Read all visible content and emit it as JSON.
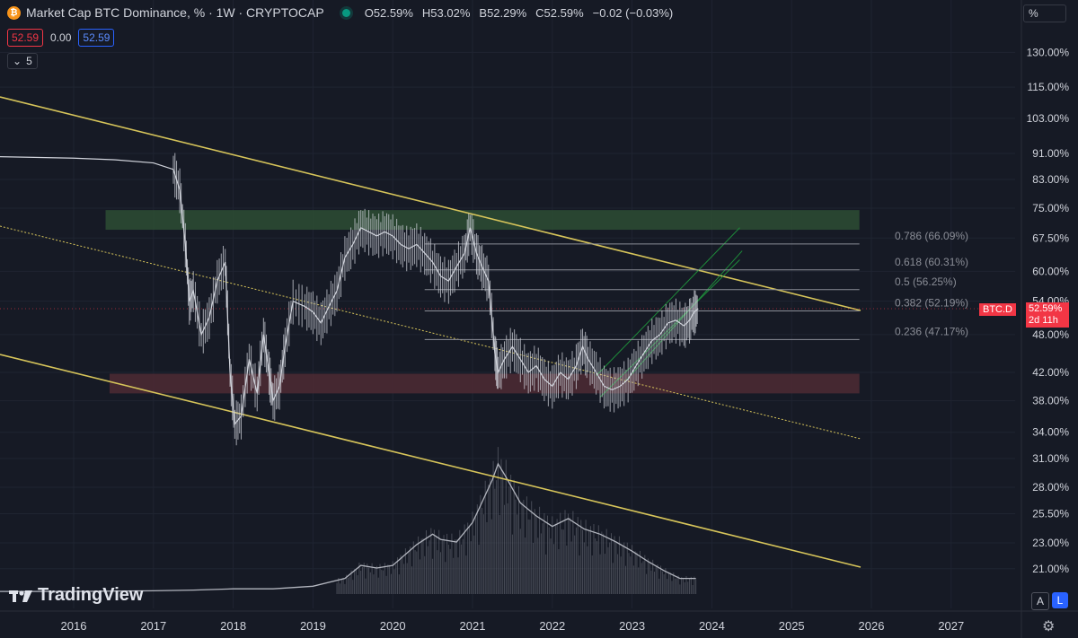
{
  "header": {
    "logo_glyph": "₿",
    "title": "Market Cap BTC Dominance, % · 1W · CRYPTOCAP",
    "ohlc": [
      {
        "k": "O",
        "v": "52.59%"
      },
      {
        "k": "H",
        "v": "53.02%"
      },
      {
        "k": "B",
        "v": "52.29%"
      },
      {
        "k": "C",
        "v": "52.59%"
      },
      {
        "k": "",
        "v": "−0.02 (−0.03%)"
      }
    ],
    "bid": "52.59",
    "spread": "0.00",
    "ask": "52.59",
    "indicators_collapse": "5",
    "scale_mode": "%"
  },
  "branding": {
    "name": "TradingView"
  },
  "corner_buttons": {
    "auto": "A",
    "log": "L"
  },
  "price_tag": {
    "symbol": "BTC.D",
    "value": "52.59%",
    "countdown": "2d 11h"
  },
  "colors": {
    "background": "#161a25",
    "grid": "#1f2431",
    "price": "#d1d4dc",
    "trend": "#d6c45a",
    "channel": "#1e8c3a",
    "fib": "#8a8d96",
    "resistance_zone": "#2b4a33",
    "support_zone": "#4a2a33",
    "red": "#f23645"
  },
  "chart_data": {
    "type": "line",
    "series": [
      {
        "values": [
          [
            2015.0,
            90
          ],
          [
            2016.0,
            89.5
          ],
          [
            2016.5,
            89
          ],
          [
            2017.0,
            88
          ],
          [
            2017.25,
            86
          ],
          [
            2017.33,
            80
          ],
          [
            2017.4,
            66
          ],
          [
            2017.45,
            54
          ],
          [
            2017.5,
            56
          ],
          [
            2017.6,
            48
          ],
          [
            2017.7,
            51
          ],
          [
            2017.8,
            58
          ],
          [
            2017.9,
            62
          ],
          [
            2017.96,
            42
          ],
          [
            2018.02,
            35
          ],
          [
            2018.1,
            36
          ],
          [
            2018.2,
            44
          ],
          [
            2018.3,
            39
          ],
          [
            2018.38,
            48
          ],
          [
            2018.45,
            42
          ],
          [
            2018.5,
            38
          ],
          [
            2018.58,
            40
          ],
          [
            2018.65,
            46
          ],
          [
            2018.75,
            54
          ],
          [
            2018.9,
            53
          ],
          [
            2019.0,
            52
          ],
          [
            2019.1,
            50
          ],
          [
            2019.2,
            53
          ],
          [
            2019.3,
            56
          ],
          [
            2019.4,
            63
          ],
          [
            2019.5,
            66
          ],
          [
            2019.6,
            70
          ],
          [
            2019.7,
            69
          ],
          [
            2019.8,
            68
          ],
          [
            2019.9,
            69
          ],
          [
            2020.0,
            68
          ],
          [
            2020.1,
            66
          ],
          [
            2020.2,
            65
          ],
          [
            2020.3,
            66
          ],
          [
            2020.4,
            64
          ],
          [
            2020.5,
            62
          ],
          [
            2020.6,
            59
          ],
          [
            2020.7,
            58
          ],
          [
            2020.8,
            61
          ],
          [
            2020.9,
            64
          ],
          [
            2020.97,
            70
          ],
          [
            2021.05,
            64
          ],
          [
            2021.12,
            61
          ],
          [
            2021.2,
            58
          ],
          [
            2021.28,
            45
          ],
          [
            2021.32,
            42
          ],
          [
            2021.4,
            44
          ],
          [
            2021.5,
            46
          ],
          [
            2021.6,
            44
          ],
          [
            2021.7,
            42
          ],
          [
            2021.8,
            43
          ],
          [
            2021.9,
            41
          ],
          [
            2022.0,
            40
          ],
          [
            2022.1,
            42
          ],
          [
            2022.2,
            41
          ],
          [
            2022.3,
            43
          ],
          [
            2022.38,
            46
          ],
          [
            2022.45,
            44
          ],
          [
            2022.55,
            42
          ],
          [
            2022.65,
            40
          ],
          [
            2022.75,
            39.5
          ],
          [
            2022.85,
            40
          ],
          [
            2022.95,
            41
          ],
          [
            2023.05,
            43
          ],
          [
            2023.15,
            45
          ],
          [
            2023.25,
            47
          ],
          [
            2023.35,
            48
          ],
          [
            2023.45,
            50
          ],
          [
            2023.55,
            50.5
          ],
          [
            2023.65,
            49.5
          ],
          [
            2023.72,
            50.5
          ],
          [
            2023.78,
            52
          ],
          [
            2023.83,
            52.6
          ]
        ]
      }
    ],
    "volume_overlay": [
      [
        2015.0,
        2
      ],
      [
        2016.0,
        2
      ],
      [
        2017.0,
        2.5
      ],
      [
        2017.5,
        3
      ],
      [
        2018.0,
        4
      ],
      [
        2018.5,
        4
      ],
      [
        2019.0,
        6
      ],
      [
        2019.4,
        12
      ],
      [
        2019.6,
        22
      ],
      [
        2019.8,
        20
      ],
      [
        2020.0,
        22
      ],
      [
        2020.3,
        38
      ],
      [
        2020.5,
        46
      ],
      [
        2020.6,
        42
      ],
      [
        2020.8,
        40
      ],
      [
        2021.0,
        55
      ],
      [
        2021.1,
        68
      ],
      [
        2021.25,
        88
      ],
      [
        2021.32,
        100
      ],
      [
        2021.4,
        92
      ],
      [
        2021.6,
        70
      ],
      [
        2021.8,
        60
      ],
      [
        2022.0,
        52
      ],
      [
        2022.2,
        58
      ],
      [
        2022.4,
        50
      ],
      [
        2022.6,
        46
      ],
      [
        2022.8,
        40
      ],
      [
        2023.0,
        33
      ],
      [
        2023.2,
        25
      ],
      [
        2023.4,
        18
      ],
      [
        2023.6,
        12
      ],
      [
        2023.8,
        12
      ]
    ],
    "x_ticks": [
      "2016",
      "2017",
      "2018",
      "2019",
      "2020",
      "2021",
      "2022",
      "2023",
      "2024",
      "2025",
      "2026",
      "2027"
    ],
    "y_ticks": [
      "130.00%",
      "115.00%",
      "103.00%",
      "91.00%",
      "83.00%",
      "75.00%",
      "67.50%",
      "60.00%",
      "54.00%",
      "48.00%",
      "42.00%",
      "38.00%",
      "34.00%",
      "31.00%",
      "28.00%",
      "25.50%",
      "23.00%",
      "21.00%"
    ],
    "fib_levels": [
      {
        "ratio": 0.786,
        "label": "0.786 (66.09%)"
      },
      {
        "ratio": 0.618,
        "label": "0.618 (60.31%)"
      },
      {
        "ratio": 0.5,
        "label": "0.5 (56.25%)"
      },
      {
        "ratio": 0.382,
        "label": "0.382 (52.19%)"
      },
      {
        "ratio": 0.236,
        "label": "0.236 (47.17%)"
      }
    ],
    "fib_values": [
      66.09,
      60.31,
      56.25,
      52.19,
      47.17
    ],
    "resistance_zone": [
      69.5,
      74.5
    ],
    "support_zone": [
      39.0,
      41.8
    ],
    "log_scale": true,
    "grid": true
  }
}
